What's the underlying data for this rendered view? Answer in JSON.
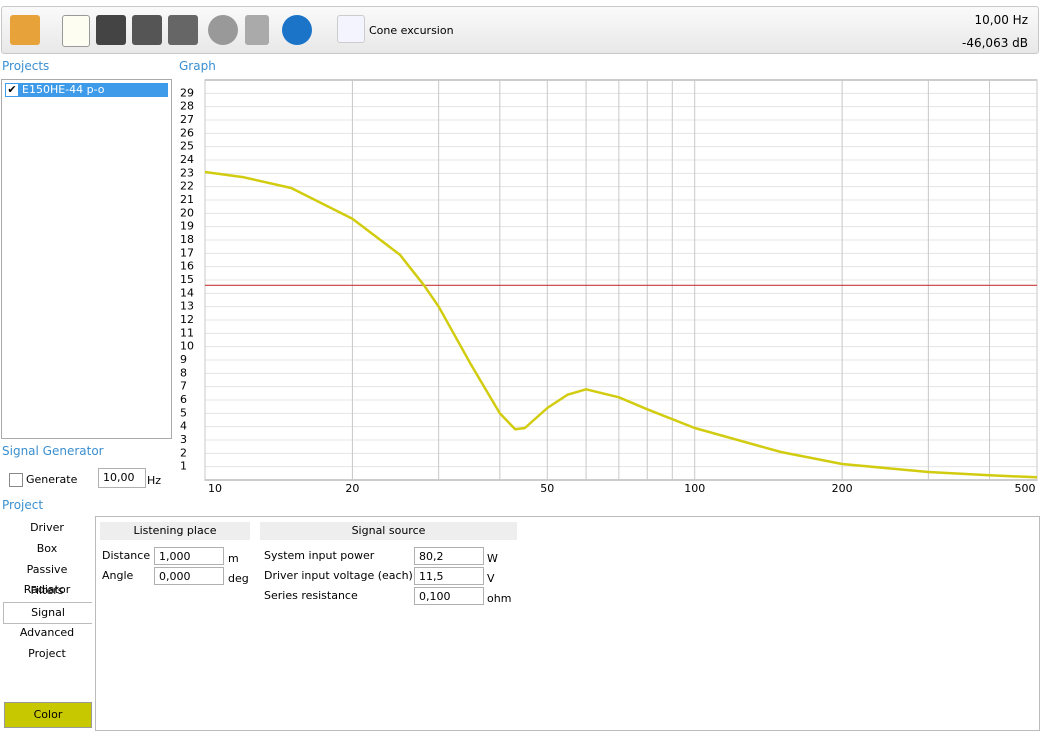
{
  "toolbar": {
    "view": "Cone excursion",
    "frequency": "10,00 Hz",
    "level": "-46,063 dB"
  },
  "projects": {
    "title": "Projects",
    "items": [
      "E150HE-44 p-o"
    ]
  },
  "graph_title": "Graph",
  "chart_data": {
    "type": "line",
    "log_x": true,
    "grid": true,
    "x": [
      10,
      12,
      15,
      20,
      25,
      28,
      30,
      35,
      40,
      43,
      45,
      50,
      55,
      60,
      70,
      80,
      100,
      150,
      200,
      300,
      400,
      500
    ],
    "series": [
      {
        "color": "#d2cc10",
        "values": [
          23.1,
          22.7,
          21.9,
          19.6,
          16.9,
          14.6,
          13,
          8.6,
          5,
          3.8,
          3.9,
          5.4,
          6.4,
          6.8,
          6.2,
          5.3,
          3.9,
          2.1,
          1.2,
          0.6,
          0.35,
          0.2
        ]
      }
    ],
    "xlim": [
      10,
      500
    ],
    "xticks": [
      10,
      20,
      50,
      100,
      200,
      500
    ],
    "xminor": [
      30,
      40,
      60,
      70,
      80,
      90,
      300,
      400
    ],
    "ylim": [
      0,
      30
    ],
    "yticks": [
      1,
      2,
      3,
      4,
      5,
      6,
      7,
      8,
      9,
      10,
      11,
      12,
      13,
      14,
      15,
      16,
      17,
      18,
      19,
      20,
      21,
      22,
      23,
      24,
      25,
      26,
      27,
      28,
      29
    ],
    "reference_line": {
      "value": 14.6,
      "color": "#c83a3a"
    }
  },
  "signal_generator": {
    "title": "Signal Generator",
    "checkbox": "Generate",
    "value": "10,00",
    "unit": "Hz"
  },
  "project": {
    "title": "Project",
    "tabs": [
      "Driver",
      "Box",
      "Passive Radiator",
      "Filters",
      "Signal",
      "Advanced",
      "Project"
    ],
    "selected": 4,
    "color_button": "Color"
  },
  "listening_place": {
    "title": "Listening place",
    "fields": [
      {
        "label": "Distance",
        "value": "1,000",
        "unit": "m"
      },
      {
        "label": "Angle",
        "value": "0,000",
        "unit": "deg"
      }
    ]
  },
  "signal_source": {
    "title": "Signal source",
    "fields": [
      {
        "label": "System input power",
        "value": "80,2",
        "unit": "W"
      },
      {
        "label": "Driver input voltage (each)",
        "value": "11,5",
        "unit": "V"
      },
      {
        "label": "Series resistance",
        "value": "0,100",
        "unit": "ohm"
      }
    ]
  }
}
